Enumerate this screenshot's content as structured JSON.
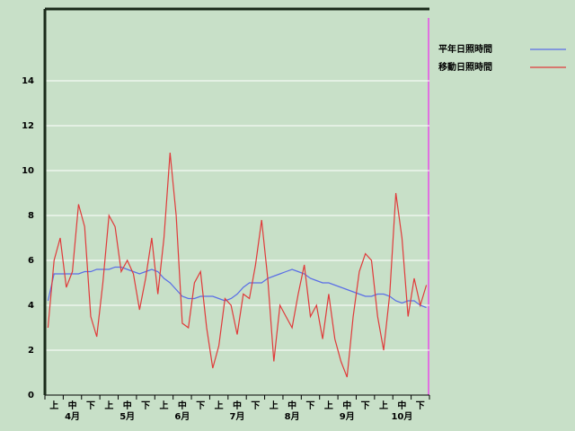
{
  "chart_data": {
    "type": "line",
    "categories": [
      null,
      "上",
      null,
      null,
      "中",
      null,
      null,
      "下",
      null,
      null,
      "上",
      null,
      null,
      "中",
      null,
      null,
      "下",
      null,
      null,
      "上",
      null,
      null,
      "中",
      null,
      null,
      "下",
      null,
      null,
      "上",
      null,
      null,
      "中",
      null,
      null,
      "下",
      null,
      null,
      "上",
      null,
      null,
      "中",
      null,
      null,
      "下",
      null,
      null,
      "上",
      null,
      null,
      "中",
      null,
      null,
      "下",
      null,
      null,
      "上",
      null,
      null,
      "中",
      null,
      null,
      "下",
      null
    ],
    "months": [
      "4月",
      "5月",
      "6月",
      "7月",
      "8月",
      "9月",
      "10月"
    ],
    "series": [
      {
        "name": "平年日照時間",
        "color": "#5a6ee6",
        "values": [
          4.2,
          5.4,
          5.4,
          5.4,
          5.4,
          5.4,
          5.5,
          5.5,
          5.6,
          5.6,
          5.6,
          5.7,
          5.7,
          5.6,
          5.5,
          5.4,
          5.5,
          5.6,
          5.5,
          5.2,
          5.0,
          4.7,
          4.4,
          4.3,
          4.3,
          4.4,
          4.4,
          4.4,
          4.3,
          4.2,
          4.3,
          4.5,
          4.8,
          5.0,
          5.0,
          5.0,
          5.2,
          5.3,
          5.4,
          5.5,
          5.6,
          5.5,
          5.4,
          5.2,
          5.1,
          5.0,
          5.0,
          4.9,
          4.8,
          4.7,
          4.6,
          4.5,
          4.4,
          4.4,
          4.5,
          4.5,
          4.4,
          4.2,
          4.1,
          4.2,
          4.2,
          4.0,
          3.9
        ]
      },
      {
        "name": "移動日照時間",
        "color": "#e03a3a",
        "values": [
          3.0,
          6.0,
          7.0,
          4.8,
          5.5,
          8.5,
          7.5,
          3.5,
          2.6,
          5.0,
          8.0,
          7.5,
          5.5,
          6.0,
          5.4,
          3.8,
          5.2,
          7.0,
          4.5,
          7.0,
          10.8,
          8.0,
          3.2,
          3.0,
          5.0,
          5.5,
          3.0,
          1.2,
          2.2,
          4.3,
          4.0,
          2.7,
          4.5,
          4.3,
          5.8,
          7.8,
          5.2,
          1.5,
          4.0,
          3.5,
          3.0,
          4.5,
          5.8,
          3.5,
          4.0,
          2.5,
          4.5,
          2.5,
          1.5,
          0.8,
          3.5,
          5.5,
          6.3,
          6.0,
          3.5,
          2.0,
          4.5,
          9.0,
          7.0,
          3.5,
          5.2,
          4.0,
          4.9
        ]
      }
    ],
    "ylim": [
      0,
      17.2
    ],
    "yticks": [
      0,
      2,
      4,
      6,
      8,
      10,
      12,
      14
    ],
    "grid": true
  }
}
